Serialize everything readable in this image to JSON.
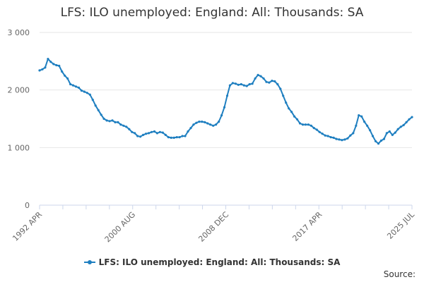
{
  "title": "LFS: ILO unemployed: England: All: Thousands: SA",
  "source_label": "Source:",
  "colors": {
    "series": "#1f7fc0",
    "grid": "#e6e6e6",
    "axis": "#ccd6eb"
  },
  "chart_data": {
    "type": "line",
    "title": "LFS: ILO unemployed: England: All: Thousands: SA",
    "xlabel": "",
    "ylabel": "",
    "x_range": [
      "1992 APR",
      "2025 JUL"
    ],
    "ylim": [
      0,
      3000
    ],
    "y_ticks": [
      0,
      1000,
      2000,
      3000
    ],
    "y_tick_labels": [
      "0",
      "1 000",
      "2 000",
      "3 000"
    ],
    "x_tick_labels": [
      "1992 APR",
      "2000 AUG",
      "2008 DEC",
      "2017 APR",
      "2025 JUL"
    ],
    "x_tick_dates": [
      "1992-04",
      "2000-08",
      "2008-12",
      "2017-04",
      "2025-07"
    ],
    "grid": true,
    "legend": "bottom",
    "series": [
      {
        "name": "LFS: ILO unemployed: England: All: Thousands: SA",
        "points": [
          [
            "1992-04",
            2340
          ],
          [
            "1992-07",
            2360
          ],
          [
            "1992-10",
            2390
          ],
          [
            "1993-01",
            2540
          ],
          [
            "1993-04",
            2490
          ],
          [
            "1993-07",
            2450
          ],
          [
            "1993-10",
            2430
          ],
          [
            "1994-01",
            2420
          ],
          [
            "1994-04",
            2320
          ],
          [
            "1994-07",
            2250
          ],
          [
            "1994-10",
            2200
          ],
          [
            "1995-01",
            2100
          ],
          [
            "1995-04",
            2080
          ],
          [
            "1995-07",
            2060
          ],
          [
            "1995-10",
            2040
          ],
          [
            "1996-01",
            1990
          ],
          [
            "1996-04",
            1970
          ],
          [
            "1996-07",
            1950
          ],
          [
            "1996-10",
            1920
          ],
          [
            "1997-01",
            1830
          ],
          [
            "1997-04",
            1730
          ],
          [
            "1997-07",
            1650
          ],
          [
            "1997-10",
            1570
          ],
          [
            "1998-01",
            1500
          ],
          [
            "1998-04",
            1470
          ],
          [
            "1998-07",
            1460
          ],
          [
            "1998-10",
            1470
          ],
          [
            "1999-01",
            1440
          ],
          [
            "1999-04",
            1440
          ],
          [
            "1999-07",
            1400
          ],
          [
            "1999-10",
            1380
          ],
          [
            "2000-01",
            1360
          ],
          [
            "2000-04",
            1320
          ],
          [
            "2000-07",
            1270
          ],
          [
            "2000-10",
            1250
          ],
          [
            "2001-01",
            1200
          ],
          [
            "2001-04",
            1190
          ],
          [
            "2001-07",
            1220
          ],
          [
            "2001-10",
            1240
          ],
          [
            "2002-01",
            1250
          ],
          [
            "2002-04",
            1270
          ],
          [
            "2002-07",
            1280
          ],
          [
            "2002-10",
            1250
          ],
          [
            "2003-01",
            1270
          ],
          [
            "2003-04",
            1260
          ],
          [
            "2003-07",
            1220
          ],
          [
            "2003-10",
            1180
          ],
          [
            "2004-01",
            1170
          ],
          [
            "2004-04",
            1170
          ],
          [
            "2004-07",
            1180
          ],
          [
            "2004-10",
            1180
          ],
          [
            "2005-01",
            1200
          ],
          [
            "2005-04",
            1200
          ],
          [
            "2005-07",
            1280
          ],
          [
            "2005-10",
            1340
          ],
          [
            "2006-01",
            1400
          ],
          [
            "2006-04",
            1430
          ],
          [
            "2006-07",
            1450
          ],
          [
            "2006-10",
            1450
          ],
          [
            "2007-01",
            1440
          ],
          [
            "2007-04",
            1420
          ],
          [
            "2007-07",
            1400
          ],
          [
            "2007-10",
            1380
          ],
          [
            "2008-01",
            1400
          ],
          [
            "2008-04",
            1450
          ],
          [
            "2008-07",
            1560
          ],
          [
            "2008-10",
            1700
          ],
          [
            "2009-01",
            1900
          ],
          [
            "2009-04",
            2080
          ],
          [
            "2009-07",
            2120
          ],
          [
            "2009-10",
            2110
          ],
          [
            "2010-01",
            2090
          ],
          [
            "2010-04",
            2100
          ],
          [
            "2010-07",
            2080
          ],
          [
            "2010-10",
            2070
          ],
          [
            "2011-01",
            2100
          ],
          [
            "2011-04",
            2110
          ],
          [
            "2011-07",
            2200
          ],
          [
            "2011-10",
            2260
          ],
          [
            "2012-01",
            2240
          ],
          [
            "2012-04",
            2200
          ],
          [
            "2012-07",
            2140
          ],
          [
            "2012-10",
            2130
          ],
          [
            "2013-01",
            2160
          ],
          [
            "2013-04",
            2150
          ],
          [
            "2013-07",
            2100
          ],
          [
            "2013-10",
            2020
          ],
          [
            "2014-01",
            1900
          ],
          [
            "2014-04",
            1780
          ],
          [
            "2014-07",
            1680
          ],
          [
            "2014-10",
            1620
          ],
          [
            "2015-01",
            1540
          ],
          [
            "2015-04",
            1490
          ],
          [
            "2015-07",
            1420
          ],
          [
            "2015-10",
            1400
          ],
          [
            "2016-01",
            1400
          ],
          [
            "2016-04",
            1400
          ],
          [
            "2016-07",
            1380
          ],
          [
            "2016-10",
            1340
          ],
          [
            "2017-01",
            1310
          ],
          [
            "2017-04",
            1270
          ],
          [
            "2017-07",
            1240
          ],
          [
            "2017-10",
            1210
          ],
          [
            "2018-01",
            1200
          ],
          [
            "2018-04",
            1180
          ],
          [
            "2018-07",
            1170
          ],
          [
            "2018-10",
            1150
          ],
          [
            "2019-01",
            1140
          ],
          [
            "2019-04",
            1130
          ],
          [
            "2019-07",
            1140
          ],
          [
            "2019-10",
            1160
          ],
          [
            "2020-01",
            1210
          ],
          [
            "2020-04",
            1250
          ],
          [
            "2020-07",
            1380
          ],
          [
            "2020-10",
            1560
          ],
          [
            "2021-01",
            1540
          ],
          [
            "2021-04",
            1450
          ],
          [
            "2021-07",
            1380
          ],
          [
            "2021-10",
            1300
          ],
          [
            "2022-01",
            1200
          ],
          [
            "2022-04",
            1110
          ],
          [
            "2022-07",
            1070
          ],
          [
            "2022-10",
            1120
          ],
          [
            "2023-01",
            1150
          ],
          [
            "2023-04",
            1250
          ],
          [
            "2023-07",
            1280
          ],
          [
            "2023-10",
            1220
          ],
          [
            "2024-01",
            1260
          ],
          [
            "2024-04",
            1320
          ],
          [
            "2024-07",
            1360
          ],
          [
            "2024-10",
            1390
          ],
          [
            "2025-01",
            1440
          ],
          [
            "2025-04",
            1490
          ],
          [
            "2025-07",
            1530
          ]
        ]
      }
    ]
  }
}
